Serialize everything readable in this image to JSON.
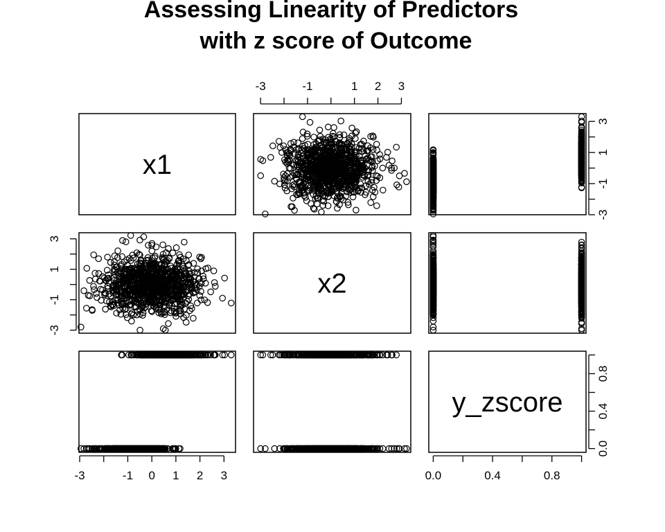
{
  "title_line1": "Assessing Linearity of Predictors",
  "title_line2": "with z score of Outcome",
  "chart_data": {
    "type": "scatter",
    "subtype": "pairs-matrix",
    "variables": [
      "x1",
      "x2",
      "y_zscore"
    ],
    "axes": {
      "x1": {
        "range": [
          -3,
          3.6
        ],
        "tick_labels": [
          "-3",
          "-1",
          "0",
          "1",
          "2",
          "3"
        ],
        "minor_ticks": [
          -2
        ]
      },
      "x2": {
        "range": [
          -3.3,
          3.6
        ],
        "tick_labels": [
          "-3",
          "-1",
          "1",
          "3"
        ],
        "minor_ticks": [
          -2,
          0,
          2
        ]
      },
      "x2_top": {
        "tick_labels": [
          "-3",
          "-1",
          "1",
          "2",
          "3"
        ],
        "minor_ticks": [
          -2,
          0
        ]
      },
      "y_zscore": {
        "range": [
          0,
          1
        ],
        "tick_labels": [
          "0.0",
          "0.4",
          "0.8"
        ],
        "minor_ticks": [
          0.2,
          0.6,
          1.0
        ]
      }
    },
    "points": {
      "note": "Approximately 1000 observations; x1 and x2 are roughly standard normal and independent; y_zscore is binary (0 or 1).",
      "n": 1000,
      "x1_mean": 0,
      "x1_sd": 1,
      "x2_mean": 0,
      "x2_sd": 1,
      "y_values": [
        0,
        1
      ],
      "y0_x1_range": [
        -3,
        1.2
      ],
      "y1_x1_range": [
        -1.0,
        3.3
      ],
      "y0_x2_range": [
        -3.0,
        2.4
      ],
      "y1_x2_range": [
        -2.0,
        3.4
      ]
    },
    "grid": false,
    "legend": "none"
  }
}
